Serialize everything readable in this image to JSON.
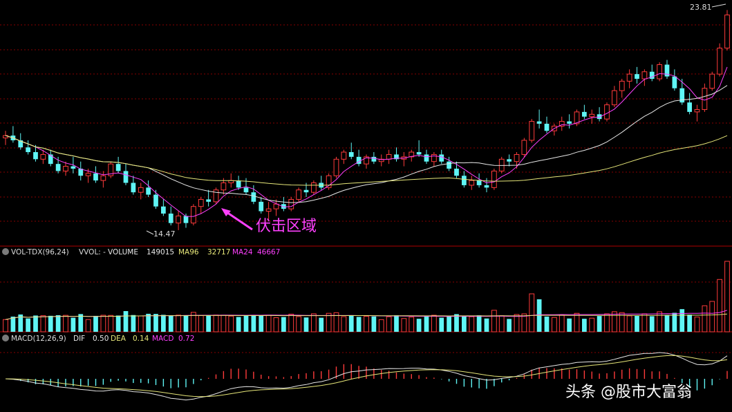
{
  "chart_data": [
    {
      "type": "candlestick",
      "title": "",
      "price_labels": {
        "high": "23.81",
        "low": "14.47"
      },
      "annotation": "伏击区域",
      "ylim": [
        14.0,
        24.0
      ],
      "colors": {
        "up": "#ff3b3b",
        "down": "#5ff5f5",
        "ma_short": "#ff40ff",
        "ma_mid": "#e8e8e8",
        "ma_long": "#e8e87a",
        "grid": "#8a0000"
      },
      "ohlc": [
        [
          18.4,
          18.7,
          18.1,
          18.5
        ],
        [
          18.5,
          18.9,
          18.2,
          18.3
        ],
        [
          18.3,
          18.6,
          17.9,
          18.0
        ],
        [
          18.0,
          18.3,
          17.7,
          17.8
        ],
        [
          17.8,
          18.1,
          17.4,
          17.5
        ],
        [
          17.5,
          17.9,
          17.3,
          17.7
        ],
        [
          17.7,
          17.9,
          17.2,
          17.3
        ],
        [
          17.3,
          17.6,
          16.9,
          17.0
        ],
        [
          17.0,
          17.4,
          16.8,
          17.2
        ],
        [
          17.2,
          17.6,
          16.9,
          17.1
        ],
        [
          17.1,
          17.4,
          16.6,
          16.8
        ],
        [
          16.8,
          17.1,
          16.5,
          16.9
        ],
        [
          16.9,
          17.2,
          16.5,
          16.6
        ],
        [
          16.6,
          17.0,
          16.3,
          16.8
        ],
        [
          16.8,
          17.4,
          16.7,
          17.3
        ],
        [
          17.3,
          17.6,
          16.9,
          17.0
        ],
        [
          17.0,
          17.3,
          16.4,
          16.5
        ],
        [
          16.5,
          16.8,
          16.0,
          16.1
        ],
        [
          16.1,
          16.5,
          15.8,
          16.3
        ],
        [
          16.3,
          16.6,
          15.9,
          16.0
        ],
        [
          16.0,
          16.2,
          15.4,
          15.5
        ],
        [
          15.5,
          15.8,
          15.1,
          15.2
        ],
        [
          15.2,
          15.5,
          14.7,
          14.8
        ],
        [
          14.8,
          15.3,
          14.5,
          15.1
        ],
        [
          15.1,
          15.2,
          14.6,
          14.8
        ],
        [
          14.8,
          15.6,
          14.7,
          15.5
        ],
        [
          15.5,
          15.9,
          15.2,
          15.8
        ],
        [
          15.8,
          16.2,
          15.5,
          15.7
        ],
        [
          15.7,
          16.3,
          15.6,
          16.2
        ],
        [
          16.2,
          16.7,
          16.0,
          16.5
        ],
        [
          16.5,
          16.9,
          16.3,
          16.6
        ],
        [
          16.6,
          16.8,
          16.2,
          16.3
        ],
        [
          16.3,
          16.7,
          16.0,
          16.1
        ],
        [
          16.1,
          16.4,
          15.6,
          15.7
        ],
        [
          15.7,
          15.9,
          15.2,
          15.3
        ],
        [
          15.3,
          15.7,
          14.9,
          15.4
        ],
        [
          15.4,
          15.8,
          15.1,
          15.6
        ],
        [
          15.6,
          15.9,
          15.3,
          15.4
        ],
        [
          15.4,
          15.9,
          15.3,
          15.8
        ],
        [
          15.8,
          16.3,
          15.7,
          16.2
        ],
        [
          16.2,
          16.5,
          15.9,
          16.1
        ],
        [
          16.1,
          16.6,
          16.0,
          16.5
        ],
        [
          16.5,
          16.8,
          16.2,
          16.3
        ],
        [
          16.3,
          16.9,
          16.2,
          16.8
        ],
        [
          16.8,
          17.6,
          16.7,
          17.5
        ],
        [
          17.5,
          17.9,
          17.3,
          17.8
        ],
        [
          17.8,
          18.2,
          17.5,
          17.6
        ],
        [
          17.6,
          17.9,
          17.2,
          17.3
        ],
        [
          17.3,
          17.7,
          17.1,
          17.6
        ],
        [
          17.6,
          17.8,
          17.3,
          17.4
        ],
        [
          17.4,
          17.7,
          17.2,
          17.5
        ],
        [
          17.5,
          17.9,
          17.3,
          17.7
        ],
        [
          17.7,
          18.0,
          17.4,
          17.5
        ],
        [
          17.5,
          17.8,
          17.2,
          17.6
        ],
        [
          17.6,
          17.9,
          17.4,
          17.8
        ],
        [
          17.8,
          18.3,
          17.6,
          17.7
        ],
        [
          17.7,
          17.9,
          17.3,
          17.4
        ],
        [
          17.4,
          17.8,
          17.2,
          17.7
        ],
        [
          17.7,
          17.9,
          17.3,
          17.4
        ],
        [
          17.4,
          17.6,
          17.0,
          17.1
        ],
        [
          17.1,
          17.4,
          16.7,
          16.8
        ],
        [
          16.8,
          17.0,
          16.3,
          16.4
        ],
        [
          16.4,
          16.8,
          16.2,
          16.6
        ],
        [
          16.6,
          16.9,
          16.3,
          16.4
        ],
        [
          16.4,
          16.7,
          16.1,
          16.3
        ],
        [
          16.3,
          17.1,
          16.2,
          17.0
        ],
        [
          17.0,
          17.6,
          16.9,
          17.5
        ],
        [
          17.5,
          17.7,
          17.2,
          17.4
        ],
        [
          17.4,
          17.8,
          17.1,
          17.7
        ],
        [
          17.7,
          18.4,
          17.6,
          18.3
        ],
        [
          18.3,
          19.2,
          18.2,
          19.1
        ],
        [
          19.1,
          19.6,
          18.8,
          19.0
        ],
        [
          19.0,
          19.3,
          18.6,
          18.7
        ],
        [
          18.7,
          19.0,
          18.5,
          18.9
        ],
        [
          18.9,
          19.3,
          18.7,
          19.1
        ],
        [
          19.1,
          19.4,
          18.8,
          19.0
        ],
        [
          19.0,
          19.6,
          18.9,
          19.5
        ],
        [
          19.5,
          19.8,
          19.2,
          19.3
        ],
        [
          19.3,
          19.6,
          19.0,
          19.4
        ],
        [
          19.4,
          19.7,
          19.1,
          19.2
        ],
        [
          19.2,
          19.9,
          19.1,
          19.8
        ],
        [
          19.8,
          20.6,
          19.7,
          20.4
        ],
        [
          20.4,
          20.9,
          20.1,
          20.8
        ],
        [
          20.8,
          21.3,
          20.5,
          21.1
        ],
        [
          21.1,
          21.4,
          20.7,
          20.9
        ],
        [
          20.9,
          21.3,
          20.6,
          21.2
        ],
        [
          21.2,
          21.5,
          20.8,
          20.9
        ],
        [
          20.9,
          21.6,
          20.8,
          21.5
        ],
        [
          21.5,
          21.7,
          20.9,
          21.0
        ],
        [
          21.0,
          21.3,
          20.4,
          20.5
        ],
        [
          20.5,
          20.9,
          19.8,
          19.9
        ],
        [
          19.9,
          20.3,
          19.4,
          19.5
        ],
        [
          19.5,
          19.8,
          19.1,
          19.6
        ],
        [
          19.6,
          20.7,
          19.5,
          20.5
        ],
        [
          20.5,
          21.2,
          20.4,
          21.1
        ],
        [
          21.1,
          22.4,
          21.0,
          22.2
        ],
        [
          22.2,
          23.81,
          22.1,
          23.6
        ]
      ]
    },
    {
      "type": "bar",
      "title": "VOL-TDX(96,24)",
      "label": "VVOL: -",
      "legend": [
        {
          "name": "VOLUME",
          "value": "149015",
          "color": "#e8e8e8"
        },
        {
          "name": "MA96",
          "value": "32717",
          "color": "#e8e87a"
        },
        {
          "name": "MA24",
          "value": "46667",
          "color": "#ff40ff"
        }
      ],
      "note": "bar heights mirror candle direction; final bars are volume spikes"
    },
    {
      "type": "bar",
      "title": "MACD(12,26,9)",
      "legend": [
        {
          "name": "DIF",
          "value": "0.50",
          "color": "#e8e8e8"
        },
        {
          "name": "DEA",
          "value": "0.14",
          "color": "#e8e87a"
        },
        {
          "name": "MACD",
          "value": "0.72",
          "color": "#ff40ff"
        }
      ]
    }
  ],
  "watermark": "头条 @股市大富翁"
}
